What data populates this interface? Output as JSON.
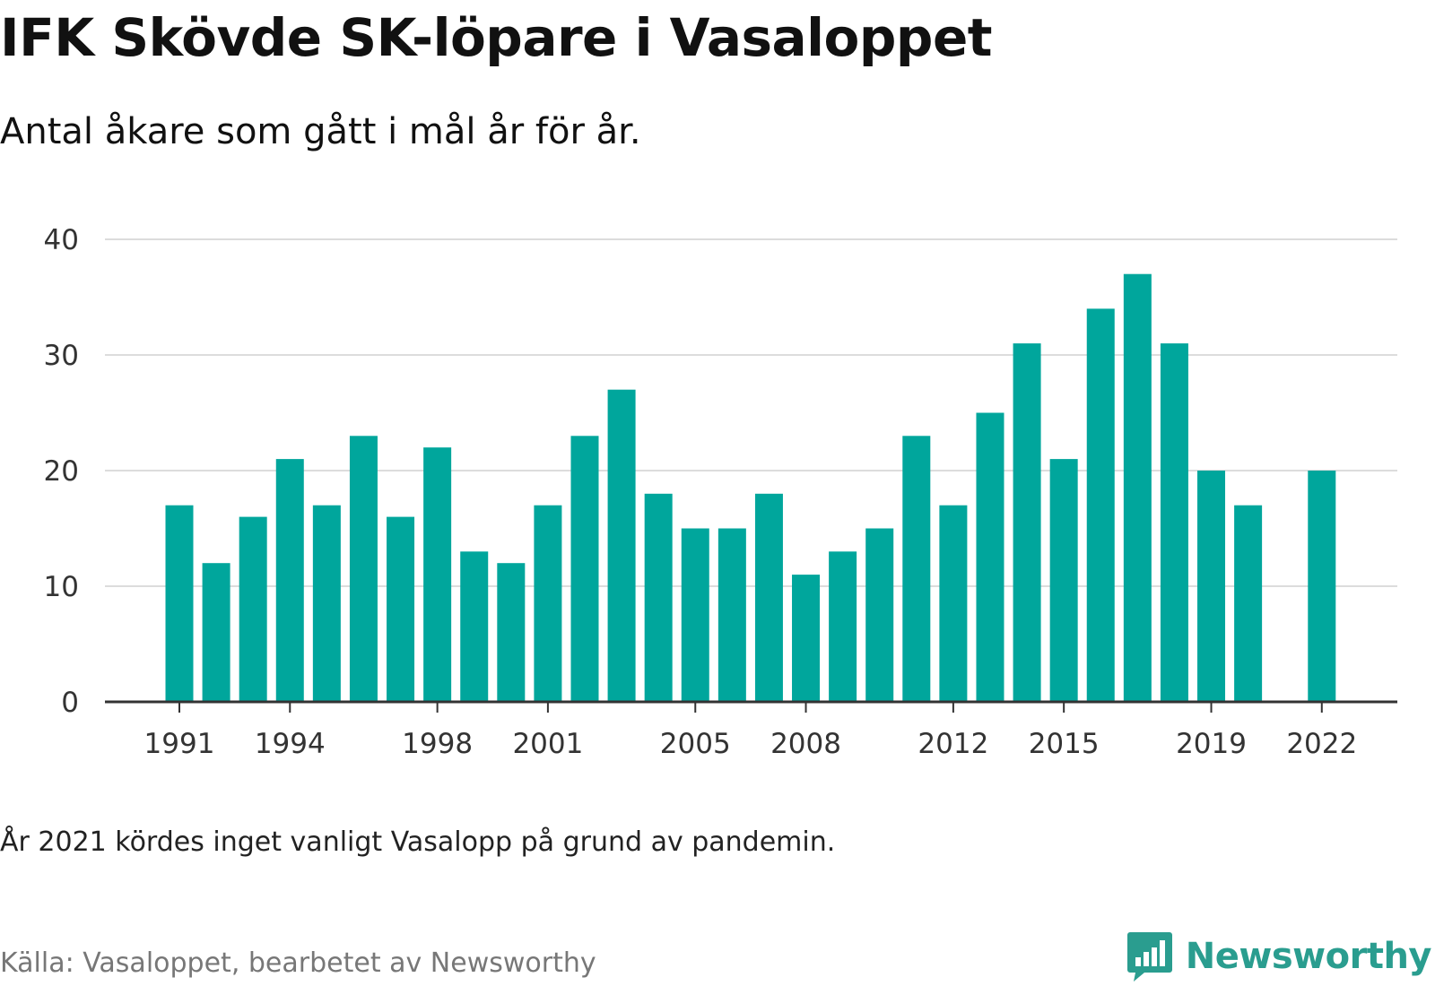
{
  "title": "IFK Skövde SK-löpare i Vasaloppet",
  "subtitle": "Antal åkare som gått i mål år för år.",
  "note": "År 2021 kördes inget vanligt Vasalopp på grund av pandemin.",
  "source": "Källa: Vasaloppet, bearbetet av Newsworthy",
  "logo": {
    "text": "Newsworthy",
    "color": "#2a9d8f",
    "icon": "bar-chart-speech-bubble-icon"
  },
  "chart_data": {
    "type": "bar",
    "title": "IFK Skövde SK-löpare i Vasaloppet",
    "subtitle": "Antal åkare som gått i mål år för år.",
    "xlabel": "",
    "ylabel": "",
    "ylim": [
      0,
      40
    ],
    "yticks": [
      0,
      10,
      20,
      30,
      40
    ],
    "xtick_labels": [
      1991,
      1994,
      1998,
      2001,
      2005,
      2008,
      2012,
      2015,
      2019,
      2022
    ],
    "grid": true,
    "bar_color": "#00a69c",
    "categories": [
      1991,
      1992,
      1993,
      1994,
      1995,
      1996,
      1997,
      1998,
      1999,
      2000,
      2001,
      2002,
      2003,
      2004,
      2005,
      2006,
      2007,
      2008,
      2009,
      2010,
      2011,
      2012,
      2013,
      2014,
      2015,
      2016,
      2017,
      2018,
      2019,
      2020,
      2021,
      2022
    ],
    "values": [
      17,
      12,
      16,
      21,
      17,
      23,
      16,
      22,
      13,
      12,
      17,
      23,
      27,
      18,
      15,
      15,
      18,
      11,
      13,
      15,
      23,
      17,
      25,
      31,
      21,
      34,
      37,
      31,
      20,
      17,
      null,
      20
    ]
  }
}
